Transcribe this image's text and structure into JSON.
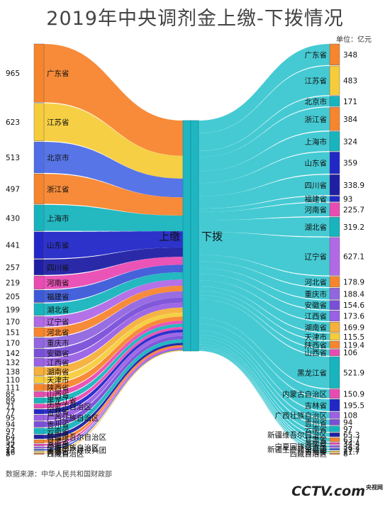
{
  "title": "2019年中央调剂金上缴-下拨情况",
  "unit": "单位：亿元",
  "source": "数据来源：中华人民共和国财政部",
  "logo": {
    "main": "CCTV.com",
    "sub": "央视网"
  },
  "colors": {
    "mid_bar": "#1fb6c1",
    "mid_bar_edge": "#0c8c95",
    "right_flow": "#35c6cf"
  },
  "chart_data": {
    "type": "sankey",
    "center_left_label": "上缴",
    "center_right_label": "下拨",
    "left": [
      {
        "name": "广东省",
        "value": 965,
        "color": "#f7852e"
      },
      {
        "name": "江苏省",
        "value": 623,
        "color": "#f6cc3b"
      },
      {
        "name": "北京市",
        "value": 513,
        "color": "#4f6ee6"
      },
      {
        "name": "浙江省",
        "value": 497,
        "color": "#f7852e"
      },
      {
        "name": "上海市",
        "value": 430,
        "color": "#18b4be"
      },
      {
        "name": "山东省",
        "value": 441,
        "color": "#2227c8"
      },
      {
        "name": "四川省",
        "value": 257,
        "color": "#1f1fa4"
      },
      {
        "name": "河南省",
        "value": 219,
        "color": "#e94bb3"
      },
      {
        "name": "福建省",
        "value": 205,
        "color": "#3c5ad8"
      },
      {
        "name": "湖北省",
        "value": 199,
        "color": "#18b4be"
      },
      {
        "name": "辽宁省",
        "value": 170,
        "color": "#b169e6"
      },
      {
        "name": "河北省",
        "value": 151,
        "color": "#f7852e"
      },
      {
        "name": "重庆市",
        "value": 170,
        "color": "#9166e0"
      },
      {
        "name": "安徽省",
        "value": 142,
        "color": "#7a4fd8"
      },
      {
        "name": "江西省",
        "value": 132,
        "color": "#9a60e6"
      },
      {
        "name": "湖南省",
        "value": 138,
        "color": "#f6b03b"
      },
      {
        "name": "天津市",
        "value": 110,
        "color": "#f6cc3b"
      },
      {
        "name": "陕西省",
        "value": 111,
        "color": "#f7852e"
      },
      {
        "name": "山西省",
        "value": 85,
        "color": "#e94bb3"
      },
      {
        "name": "黑龙江省",
        "value": 89,
        "color": "#18b4be"
      },
      {
        "name": "内蒙古自治区",
        "value": 71,
        "color": "#e94bb3"
      },
      {
        "name": "吉林省",
        "value": 77,
        "color": "#2227c8"
      },
      {
        "name": "广西壮族自治区",
        "value": 95,
        "color": "#9a60e6"
      },
      {
        "name": "贵州省",
        "value": 94,
        "color": "#7a4fd8"
      },
      {
        "name": "云南省",
        "value": 97,
        "color": "#18b4be"
      },
      {
        "name": "新疆维吾尔自治区",
        "value": 64,
        "color": "#1f1fa4"
      },
      {
        "name": "甘肃省",
        "value": 54,
        "color": "#f7852e"
      },
      {
        "name": "海南省",
        "value": 32,
        "color": "#e94bb3"
      },
      {
        "name": "宁夏回族自治区",
        "value": 25,
        "color": "#9a60e6"
      },
      {
        "name": "新疆生产建设兵团",
        "value": 23,
        "color": "#3c5ad8"
      },
      {
        "name": "青海省",
        "value": 16,
        "color": "#f6cc3b"
      },
      {
        "name": "西藏自治区",
        "value": 8,
        "color": "#f7852e"
      }
    ],
    "right": [
      {
        "name": "广东省",
        "value": 348,
        "color": "#f7852e"
      },
      {
        "name": "江苏省",
        "value": 483,
        "color": "#f6cc3b"
      },
      {
        "name": "北京市",
        "value": 171,
        "color": "#18b4be"
      },
      {
        "name": "浙江省",
        "value": 384,
        "color": "#f7852e"
      },
      {
        "name": "上海市",
        "value": 324,
        "color": "#18b4be"
      },
      {
        "name": "山东省",
        "value": 359,
        "color": "#2227c8"
      },
      {
        "name": "四川省",
        "value": 338.9,
        "color": "#1f1fa4"
      },
      {
        "name": "福建省",
        "value": 93,
        "color": "#2227c8"
      },
      {
        "name": "河南省",
        "value": 225.7,
        "color": "#e94bb3"
      },
      {
        "name": "湖北省",
        "value": 319.2,
        "color": "#18b4be"
      },
      {
        "name": "辽宁省",
        "value": 627.1,
        "color": "#b169e6"
      },
      {
        "name": "河北省",
        "value": 178.9,
        "color": "#f7852e"
      },
      {
        "name": "重庆市",
        "value": 188.4,
        "color": "#9166e0"
      },
      {
        "name": "安徽省",
        "value": 154.6,
        "color": "#7a4fd8"
      },
      {
        "name": "江西省",
        "value": 173.6,
        "color": "#9a60e6"
      },
      {
        "name": "湖南省",
        "value": 169.9,
        "color": "#f6b03b"
      },
      {
        "name": "天津市",
        "value": 115.5,
        "color": "#f6cc3b"
      },
      {
        "name": "陕西省",
        "value": 119.4,
        "color": "#f7852e"
      },
      {
        "name": "山西省",
        "value": 106,
        "color": "#e94bb3"
      },
      {
        "name": "黑龙江省",
        "value": 521.9,
        "color": "#18b4be"
      },
      {
        "name": "内蒙古自治区",
        "value": 150.9,
        "color": "#e94bb3"
      },
      {
        "name": "吉林省",
        "value": 195.5,
        "color": "#2227c8"
      },
      {
        "name": "广西壮族自治区",
        "value": 108,
        "color": "#9a60e6"
      },
      {
        "name": "贵州省",
        "value": 94,
        "color": "#7a4fd8"
      },
      {
        "name": "云南省",
        "value": 97,
        "color": "#18b4be"
      },
      {
        "name": "新疆维吾尔自治区",
        "value": 65.3,
        "color": "#1f1fa4"
      },
      {
        "name": "甘肃省",
        "value": 63.7,
        "color": "#f7852e"
      },
      {
        "name": "海南省",
        "value": 34.4,
        "color": "#e94bb3"
      },
      {
        "name": "宁夏回族自治区",
        "value": 34.2,
        "color": "#9a60e6"
      },
      {
        "name": "新疆生产建设兵团",
        "value": 29.2,
        "color": "#3c5ad8"
      },
      {
        "name": "青海省",
        "value": 21.7,
        "color": "#f6cc3b"
      },
      {
        "name": "西藏自治区",
        "value": 8,
        "color": "#f7852e"
      }
    ]
  }
}
